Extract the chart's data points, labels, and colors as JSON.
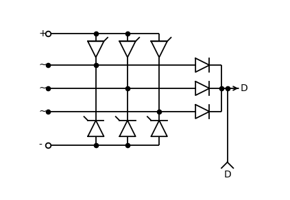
{
  "bg_color": "#ffffff",
  "line_color": "#000000",
  "lw": 1.3,
  "dot_ms": 4.5,
  "plus_label": "+",
  "minus_label": "-",
  "tilde": "~",
  "D_right": "D",
  "D_bottom": "D",
  "fig_w": 4.23,
  "fig_h": 2.92,
  "dpi": 100,
  "xl": 0,
  "xr": 10.6,
  "yb": 0,
  "yt": 7.3
}
